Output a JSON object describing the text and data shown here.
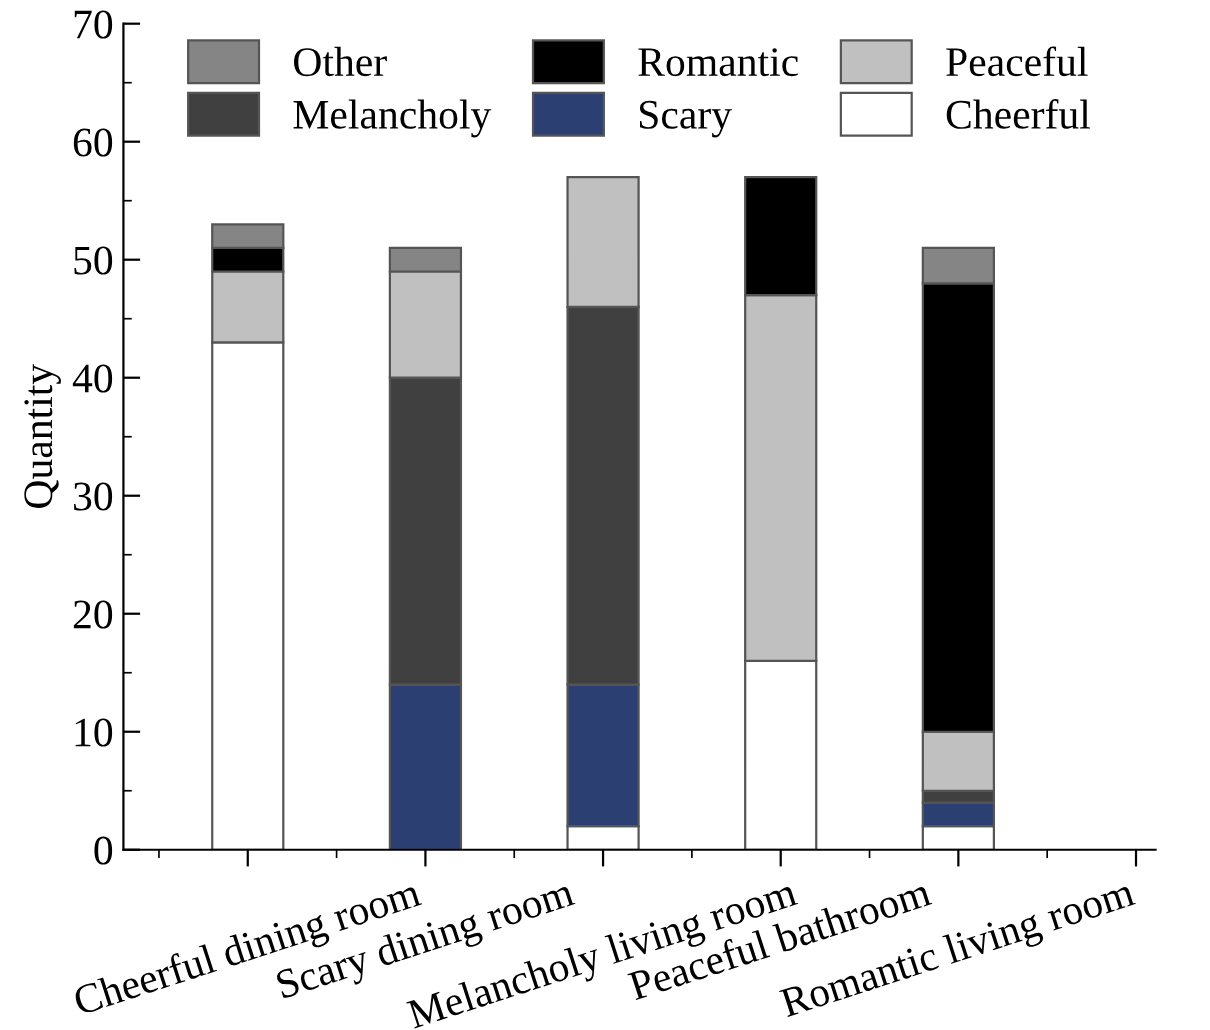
{
  "chart_data": {
    "type": "bar",
    "stacked": true,
    "ylabel": "Quantity",
    "categories": [
      "Cheerful dining room",
      "Scary dining room",
      "Melancholy living room",
      "Peaceful bathroom",
      "Romantic living room"
    ],
    "series": [
      {
        "name": "Cheerful",
        "color": "#ffffff",
        "values": [
          43,
          null,
          2,
          16,
          2
        ]
      },
      {
        "name": "Scary",
        "color": "#2b3f73",
        "values": [
          null,
          14,
          12,
          null,
          2
        ]
      },
      {
        "name": "Melancholy",
        "color": "#404040",
        "values": [
          null,
          26,
          32,
          null,
          1
        ]
      },
      {
        "name": "Peaceful",
        "color": "#c0c0c0",
        "values": [
          6,
          9,
          11,
          31,
          5
        ]
      },
      {
        "name": "Romantic",
        "color": "#000000",
        "values": [
          2,
          null,
          null,
          10,
          38
        ]
      },
      {
        "name": "Other",
        "color": "#858585",
        "values": [
          2,
          2,
          null,
          null,
          3
        ]
      }
    ],
    "ylim": [
      0,
      70
    ],
    "yticks": [
      0,
      10,
      20,
      30,
      40,
      50,
      60,
      70
    ],
    "grid": false,
    "legend": "top"
  }
}
